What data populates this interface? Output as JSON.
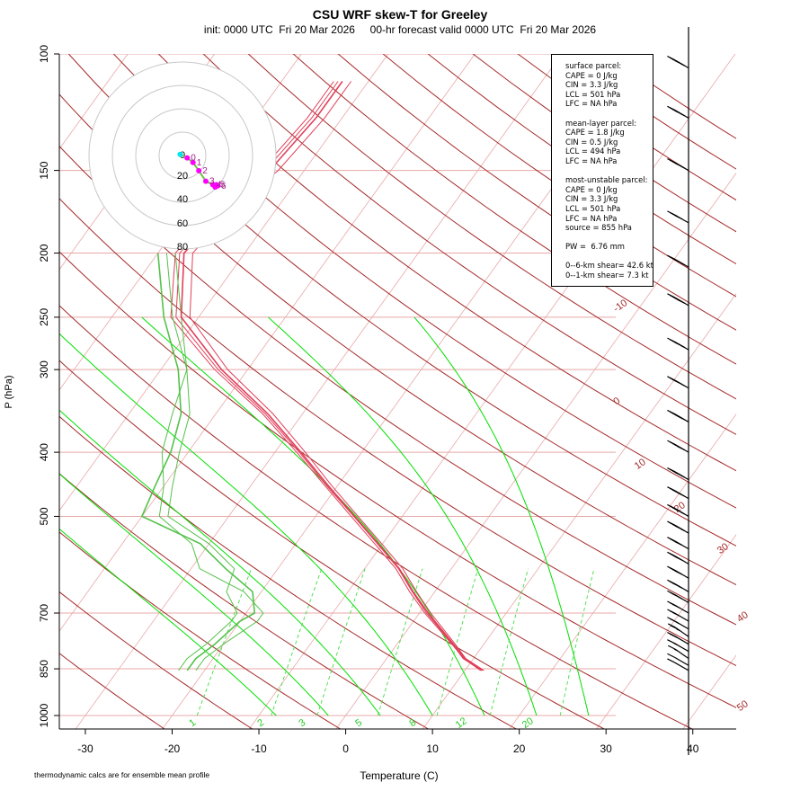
{
  "title": "CSU WRF skew-T for Greeley",
  "subtitle": "init: 0000 UTC  Fri 20 Mar 2026     00-hr forecast valid 0000 UTC  Fri 20 Mar 2026",
  "footnote": "thermodynamic calcs are for ensemble mean profile",
  "stats": {
    "surface": [
      "surface parcel:",
      "CAPE = 0 J/kg",
      "CIN = 3.3 J/kg",
      "LCL = 501 hPa",
      "LFC = NA hPa"
    ],
    "mean_layer": [
      "mean-layer parcel:",
      "CAPE = 1.8 J/kg",
      "CIN = 0.5 J/kg",
      "LCL = 494 hPa",
      "LFC = NA hPa"
    ],
    "most_unstable": [
      "most-unstable parcel:",
      "CAPE = 0 J/kg",
      "CIN = 3.3 J/kg",
      "LCL = 501 hPa",
      "LFC = NA hPa",
      "source = 855 hPa"
    ],
    "pw": [
      "PW =  6.76 mm"
    ],
    "shear": [
      "0--6-km shear= 42.6 kt",
      "0--1-km shear= 7.3 kt"
    ]
  },
  "hodograph": {
    "ring_labels": [
      "0",
      "20",
      "40",
      "60",
      "80"
    ],
    "point_labels": [
      "0",
      "1",
      "2",
      "3",
      "4",
      "5",
      "6"
    ]
  },
  "colors": {
    "temperature": "#e0405a",
    "dewpoint": "#55c24a",
    "dry_adiabat": "#a52a2a",
    "moist_adiabat": "#00e000",
    "mixing_ratio": "#44dd44",
    "isotherm": "#e8a8a8",
    "isobar": "#e8a8a8",
    "hodo_low": "#ff00ff",
    "hodo_start": "#00e5ee"
  },
  "chart_data": {
    "type": "line",
    "title": "CSU WRF skew-T for Greeley",
    "xlabel": "Temperature (C)",
    "ylabel": "P (hPa)",
    "y_scale": "log",
    "xlim": [
      -33,
      45
    ],
    "ylim": [
      1000,
      100
    ],
    "x_ticks": [
      -30,
      -20,
      -10,
      0,
      10,
      20,
      30,
      40
    ],
    "y_ticks": [
      100,
      150,
      200,
      250,
      300,
      400,
      500,
      700,
      850,
      1000
    ],
    "isotherm_labels": [
      "-10",
      "0",
      "10",
      "20",
      "30",
      "40",
      "50"
    ],
    "mixing_ratio_labels": [
      "1",
      "2",
      "3",
      "5",
      "8",
      "12",
      "20"
    ],
    "series": [
      {
        "name": "temperature",
        "p": [
          855,
          820,
          780,
          700,
          650,
          600,
          550,
          500,
          450,
          400,
          350,
          300,
          250,
          200,
          170,
          150,
          125,
          110
        ],
        "values": [
          12,
          9,
          6.5,
          1,
          -2.5,
          -6,
          -10.5,
          -15.5,
          -21,
          -27,
          -34,
          -43,
          -52,
          -57,
          -56,
          -54,
          -53,
          -53
        ]
      },
      {
        "name": "dewpoint",
        "p": [
          855,
          820,
          780,
          720,
          700,
          650,
          600,
          550,
          500,
          450,
          400,
          350,
          300,
          250,
          200
        ],
        "values": [
          -22,
          -22,
          -21,
          -20,
          -19,
          -21,
          -26,
          -31,
          -40,
          -41,
          -42,
          -44,
          -48,
          -54,
          -60
        ]
      }
    ],
    "ensemble_temperature": [
      {
        "p": [
          855,
          820,
          780,
          700,
          650,
          600,
          550,
          500,
          450,
          400,
          350,
          300,
          250,
          200,
          170,
          150,
          125,
          110
        ],
        "values": [
          11.8,
          8.9,
          6.3,
          0.6,
          -2.9,
          -6.4,
          -10.9,
          -15.9,
          -21.4,
          -27.5,
          -34.6,
          -43.8,
          -53.2,
          -58,
          -57,
          -55,
          -54,
          -54
        ]
      },
      {
        "p": [
          855,
          820,
          780,
          700,
          650,
          600,
          550,
          500,
          450,
          400,
          350,
          300,
          250,
          200,
          170,
          150,
          125,
          110
        ],
        "values": [
          12.2,
          9.1,
          6.7,
          1.3,
          -2.1,
          -5.6,
          -10.1,
          -15.1,
          -20.6,
          -26.5,
          -33.4,
          -42.3,
          -51,
          -56,
          -55,
          -53,
          -52,
          -52
        ]
      },
      {
        "p": [
          855,
          820,
          780,
          700,
          650,
          600,
          550,
          500,
          450,
          400,
          350,
          300,
          250,
          200,
          170,
          150,
          125,
          110
        ],
        "values": [
          11.9,
          8.8,
          6.4,
          0.8,
          -2.6,
          -6.1,
          -10.6,
          -15.6,
          -21.2,
          -27.2,
          -34.3,
          -43.4,
          -52.6,
          -57.5,
          -56.5,
          -54.5,
          -53.5,
          -53.5
        ]
      }
    ],
    "ensemble_dewpoint": [
      {
        "p": [
          855,
          820,
          780,
          720,
          700,
          650,
          600,
          550,
          500,
          450,
          400,
          350,
          300,
          250,
          200
        ],
        "values": [
          -21,
          -21,
          -20,
          -18,
          -18,
          -22,
          -29,
          -32,
          -38,
          -40,
          -43,
          -45,
          -47,
          -52,
          -58
        ]
      },
      {
        "p": [
          855,
          820,
          780,
          720,
          700,
          650,
          600,
          550,
          500,
          450,
          400,
          350,
          300,
          250,
          200
        ],
        "values": [
          -23,
          -23,
          -22,
          -21,
          -21,
          -24,
          -25,
          -30,
          -37,
          -39,
          -41,
          -43,
          -47,
          -53,
          -59
        ]
      }
    ],
    "wind_barbs": [
      {
        "p": 855,
        "speed_kt": 10,
        "dir_deg": 300
      },
      {
        "p": 840,
        "speed_kt": 10,
        "dir_deg": 300
      },
      {
        "p": 820,
        "speed_kt": 15,
        "dir_deg": 305
      },
      {
        "p": 800,
        "speed_kt": 15,
        "dir_deg": 300
      },
      {
        "p": 780,
        "speed_kt": 20,
        "dir_deg": 300
      },
      {
        "p": 760,
        "speed_kt": 25,
        "dir_deg": 305
      },
      {
        "p": 740,
        "speed_kt": 25,
        "dir_deg": 300
      },
      {
        "p": 720,
        "speed_kt": 30,
        "dir_deg": 300
      },
      {
        "p": 700,
        "speed_kt": 30,
        "dir_deg": 300
      },
      {
        "p": 675,
        "speed_kt": 35,
        "dir_deg": 300
      },
      {
        "p": 650,
        "speed_kt": 35,
        "dir_deg": 300
      },
      {
        "p": 620,
        "speed_kt": 40,
        "dir_deg": 300
      },
      {
        "p": 590,
        "speed_kt": 40,
        "dir_deg": 300
      },
      {
        "p": 560,
        "speed_kt": 40,
        "dir_deg": 300
      },
      {
        "p": 530,
        "speed_kt": 45,
        "dir_deg": 300
      },
      {
        "p": 500,
        "speed_kt": 45,
        "dir_deg": 300
      },
      {
        "p": 470,
        "speed_kt": 50,
        "dir_deg": 300
      },
      {
        "p": 440,
        "speed_kt": 45,
        "dir_deg": 300
      },
      {
        "p": 400,
        "speed_kt": 50,
        "dir_deg": 300
      },
      {
        "p": 360,
        "speed_kt": 50,
        "dir_deg": 300
      },
      {
        "p": 320,
        "speed_kt": 45,
        "dir_deg": 300
      },
      {
        "p": 280,
        "speed_kt": 45,
        "dir_deg": 300
      },
      {
        "p": 240,
        "speed_kt": 50,
        "dir_deg": 300
      },
      {
        "p": 210,
        "speed_kt": 45,
        "dir_deg": 300
      },
      {
        "p": 180,
        "speed_kt": 40,
        "dir_deg": 300
      },
      {
        "p": 150,
        "speed_kt": 45,
        "dir_deg": 300
      },
      {
        "p": 125,
        "speed_kt": 45,
        "dir_deg": 300
      },
      {
        "p": 105,
        "speed_kt": 45,
        "dir_deg": 300
      }
    ],
    "hodograph_points": [
      {
        "u": -2,
        "v": 1
      },
      {
        "u": 4,
        "v": -2
      },
      {
        "u": 9,
        "v": -6
      },
      {
        "u": 14,
        "v": -13
      },
      {
        "u": 20,
        "v": -22
      },
      {
        "u": 26,
        "v": -25
      },
      {
        "u": 29,
        "v": -25
      },
      {
        "u": 30,
        "v": -26
      },
      {
        "u": 28,
        "v": -27
      }
    ]
  }
}
